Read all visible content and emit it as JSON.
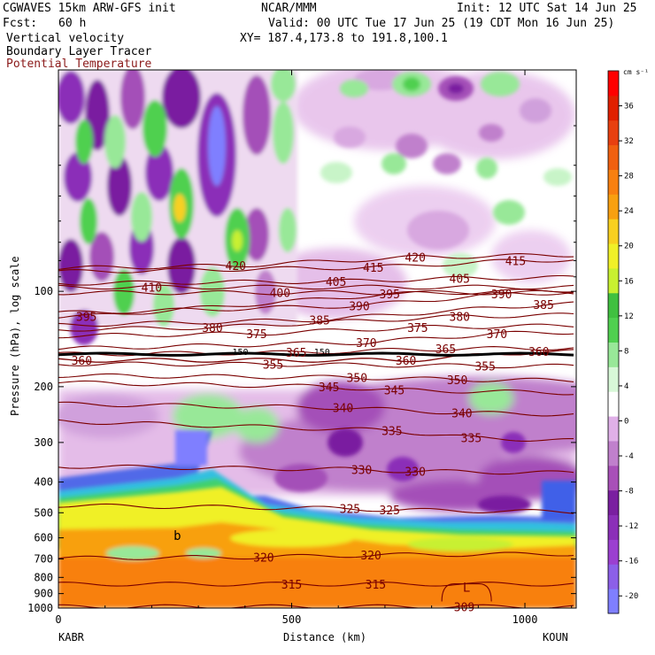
{
  "header": {
    "model": "CGWAVES 15km ARW-GFS init",
    "org": "NCAR/MMM",
    "init": "Init: 12 UTC Sat 14 Jun 25",
    "fcst_label": "Fcst:",
    "fcst_value": "60 h",
    "valid": "Valid: 00 UTC Tue 17 Jun 25 (19 CDT Mon 16 Jun 25)",
    "field1": "Vertical velocity",
    "xy": "XY= 187.4,173.8 to 191.8,100.1",
    "field2": "Boundary Layer Tracer",
    "field3": "Potential Temperature"
  },
  "colors": {
    "theta_contour": "#7a0000",
    "field3_text": "#8b1a1a",
    "tracer_line": "#000000"
  },
  "chart_data": {
    "type": "heatmap",
    "title": "",
    "xlabel": "Distance (km)",
    "ylabel": "Pressure (hPa), log scale",
    "x_range_km": [
      0,
      1110
    ],
    "y_range_hPa": [
      1000,
      20
    ],
    "y_scale": "log",
    "x_ticks": [
      "0",
      "500",
      "1000"
    ],
    "x_tick_values": [
      0,
      500,
      1000
    ],
    "endpoint_left": "KABR",
    "endpoint_right": "KOUN",
    "y_ticks": [
      "100",
      "200",
      "300",
      "400",
      "500",
      "600",
      "700",
      "800",
      "900",
      "1000"
    ],
    "y_tick_values": [
      100,
      200,
      300,
      400,
      500,
      600,
      700,
      800,
      900,
      1000
    ],
    "colorbar": {
      "units": "cm s⁻¹",
      "tick_labels": [
        "36",
        "32",
        "28",
        "24",
        "20",
        "16",
        "12",
        "8",
        "4",
        "0",
        "-4",
        "-8",
        "-12",
        "-16",
        "-20"
      ],
      "tick_values": [
        36,
        32,
        28,
        24,
        20,
        16,
        12,
        8,
        4,
        0,
        -4,
        -8,
        -12,
        -16,
        -20
      ],
      "range": [
        -22,
        40
      ],
      "colors": [
        "#7f7fff",
        "#8c5fe8",
        "#9b3fd0",
        "#8b2fb8",
        "#7a1fa0",
        "#a850b8",
        "#c080cc",
        "#e0b0e8",
        "#ffffff",
        "#d8f8d8",
        "#98e898",
        "#50d050",
        "#40c040",
        "#c8f030",
        "#f0f028",
        "#f8d020",
        "#f8a010",
        "#f88010",
        "#f06010",
        "#e84010",
        "#e02000",
        "#ff0000"
      ]
    },
    "theta_contour_labels": [
      {
        "value": "420",
        "x_km": 380,
        "p_hPa": 83
      },
      {
        "value": "420",
        "x_km": 765,
        "p_hPa": 78
      },
      {
        "value": "415",
        "x_km": 675,
        "p_hPa": 84
      },
      {
        "value": "415",
        "x_km": 980,
        "p_hPa": 80
      },
      {
        "value": "410",
        "x_km": 200,
        "p_hPa": 97
      },
      {
        "value": "405",
        "x_km": 595,
        "p_hPa": 93
      },
      {
        "value": "405",
        "x_km": 860,
        "p_hPa": 91
      },
      {
        "value": "400",
        "x_km": 475,
        "p_hPa": 101
      },
      {
        "value": "395",
        "x_km": 710,
        "p_hPa": 102
      },
      {
        "value": "395",
        "x_km": 60,
        "p_hPa": 120
      },
      {
        "value": "390",
        "x_km": 645,
        "p_hPa": 111
      },
      {
        "value": "390",
        "x_km": 950,
        "p_hPa": 102
      },
      {
        "value": "385",
        "x_km": 560,
        "p_hPa": 123
      },
      {
        "value": "385",
        "x_km": 1040,
        "p_hPa": 110
      },
      {
        "value": "380",
        "x_km": 330,
        "p_hPa": 130
      },
      {
        "value": "380",
        "x_km": 860,
        "p_hPa": 120
      },
      {
        "value": "375",
        "x_km": 425,
        "p_hPa": 136
      },
      {
        "value": "375",
        "x_km": 770,
        "p_hPa": 130
      },
      {
        "value": "370",
        "x_km": 660,
        "p_hPa": 145
      },
      {
        "value": "370",
        "x_km": 940,
        "p_hPa": 136
      },
      {
        "value": "365",
        "x_km": 510,
        "p_hPa": 156
      },
      {
        "value": "365",
        "x_km": 830,
        "p_hPa": 152
      },
      {
        "value": "360",
        "x_km": 50,
        "p_hPa": 165
      },
      {
        "value": "360",
        "x_km": 745,
        "p_hPa": 165
      },
      {
        "value": "360",
        "x_km": 1030,
        "p_hPa": 155
      },
      {
        "value": "355",
        "x_km": 460,
        "p_hPa": 170
      },
      {
        "value": "355",
        "x_km": 915,
        "p_hPa": 172
      },
      {
        "value": "350",
        "x_km": 640,
        "p_hPa": 187
      },
      {
        "value": "350",
        "x_km": 855,
        "p_hPa": 190
      },
      {
        "value": "345",
        "x_km": 580,
        "p_hPa": 200
      },
      {
        "value": "345",
        "x_km": 720,
        "p_hPa": 205
      },
      {
        "value": "340",
        "x_km": 610,
        "p_hPa": 233
      },
      {
        "value": "340",
        "x_km": 865,
        "p_hPa": 242
      },
      {
        "value": "335",
        "x_km": 715,
        "p_hPa": 275
      },
      {
        "value": "335",
        "x_km": 885,
        "p_hPa": 290
      },
      {
        "value": "330",
        "x_km": 650,
        "p_hPa": 365
      },
      {
        "value": "330",
        "x_km": 765,
        "p_hPa": 370
      },
      {
        "value": "325",
        "x_km": 625,
        "p_hPa": 485
      },
      {
        "value": "325",
        "x_km": 710,
        "p_hPa": 490
      },
      {
        "value": "320",
        "x_km": 440,
        "p_hPa": 690
      },
      {
        "value": "320",
        "x_km": 670,
        "p_hPa": 680
      },
      {
        "value": "315",
        "x_km": 500,
        "p_hPa": 840
      },
      {
        "value": "315",
        "x_km": 680,
        "p_hPa": 840
      },
      {
        "value": "309",
        "x_km": 870,
        "p_hPa": 990
      }
    ],
    "tracer_labels": [
      {
        "value": "150",
        "x_km": 390,
        "p_hPa": 155
      },
      {
        "value": "150",
        "x_km": 565,
        "p_hPa": 155
      }
    ],
    "low_marker": {
      "value": "L",
      "x_km": 875,
      "p_hPa": 860
    },
    "tracer_marker": {
      "value": "b",
      "x_km": 255,
      "p_hPa": 590
    }
  }
}
